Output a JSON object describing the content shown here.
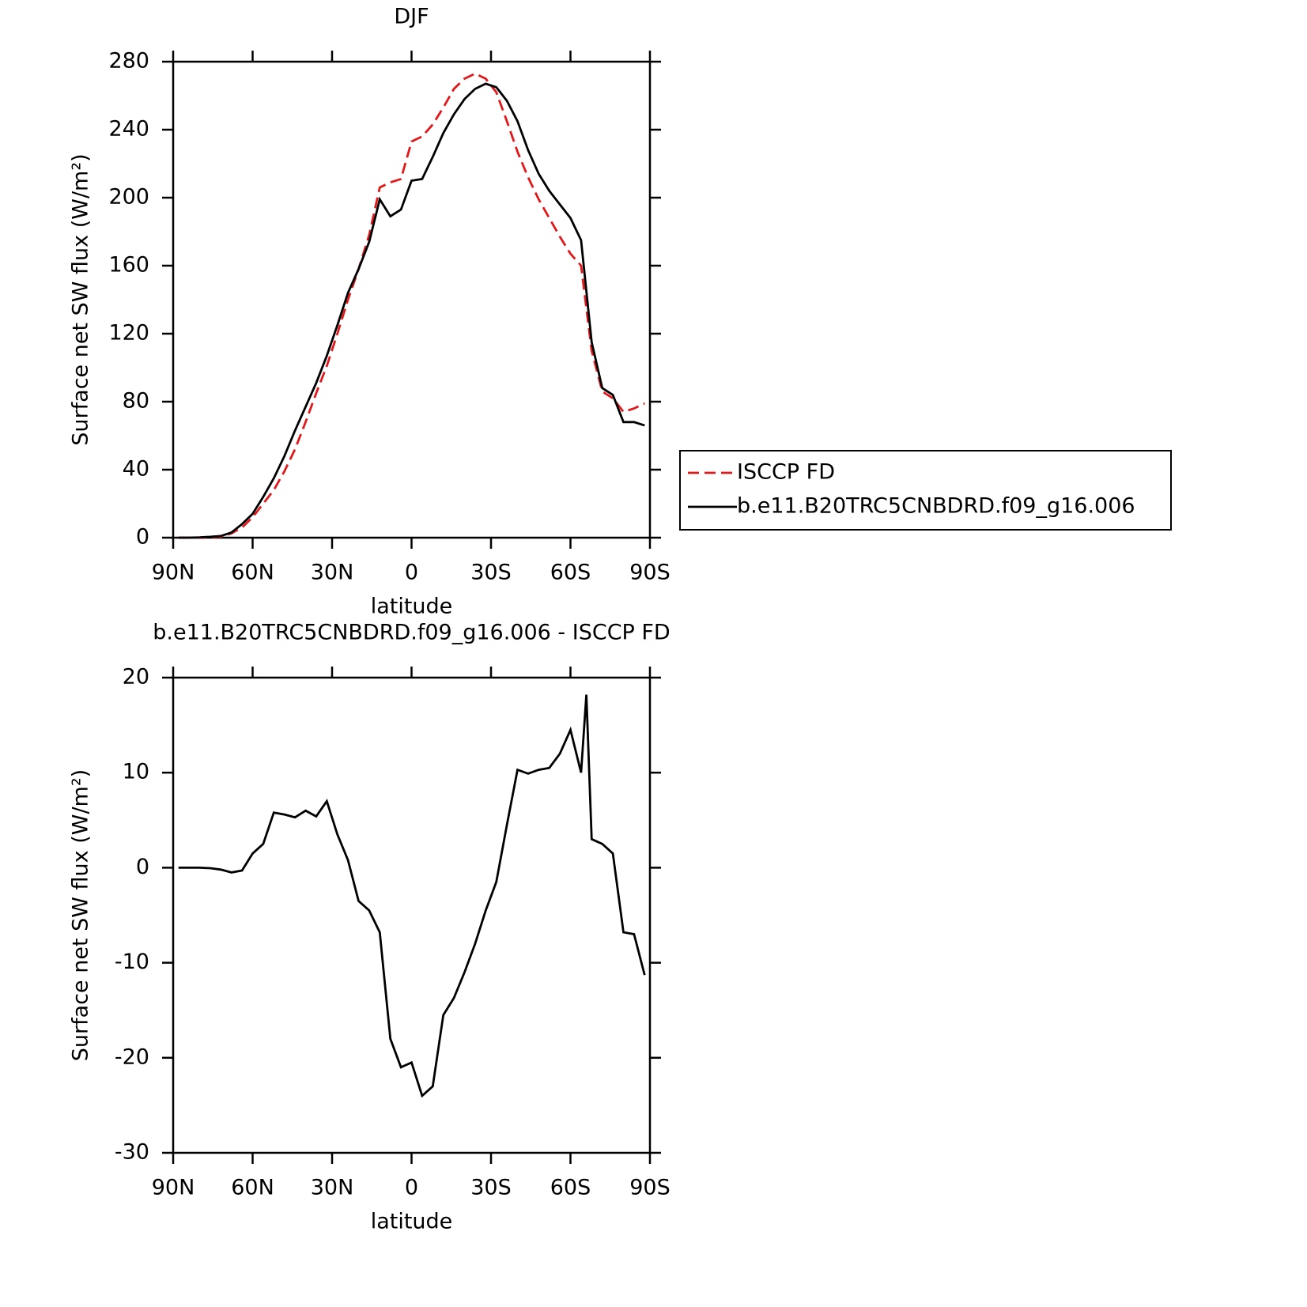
{
  "chart_data": [
    {
      "type": "line",
      "title": "DJF",
      "xlabel": "latitude",
      "ylabel": "Surface net SW flux (W/m²)",
      "x": [
        88,
        84,
        80,
        76,
        72,
        68,
        64,
        60,
        56,
        52,
        48,
        44,
        40,
        36,
        32,
        28,
        24,
        20,
        16,
        12,
        8,
        4,
        0,
        -4,
        -8,
        -12,
        -16,
        -20,
        -24,
        -28,
        -32,
        -36,
        -40,
        -44,
        -48,
        -52,
        -56,
        -60,
        -64,
        -68,
        -72,
        -76,
        -80,
        -84,
        -88
      ],
      "series": [
        {
          "name": "ISCCP FD",
          "color": "#e0191c",
          "dash": true,
          "values": [
            0,
            0,
            0,
            0.3,
            0.5,
            2.5,
            6,
            12,
            20,
            28,
            39,
            52,
            68,
            85,
            101,
            120,
            140,
            158,
            178,
            206,
            209,
            211,
            233,
            236,
            243,
            253,
            264,
            270,
            273,
            270,
            262,
            245,
            227,
            212,
            199,
            188,
            177,
            167,
            160,
            110,
            86,
            82,
            74,
            76,
            79
          ]
        },
        {
          "name": "b.e11.B20TRC5CNBDRD.f09_g16.006",
          "color": "#000000",
          "dash": false,
          "values": [
            0,
            0,
            0.2,
            0.5,
            1,
            3,
            8,
            14,
            24,
            35,
            48,
            63,
            77,
            91,
            107,
            125,
            144,
            158,
            174,
            199,
            189,
            193,
            210,
            211,
            224,
            238,
            249,
            258,
            264,
            267,
            265,
            257,
            245,
            228,
            214,
            204,
            196,
            188,
            175,
            115,
            88,
            84,
            68,
            68,
            66
          ]
        }
      ],
      "xlim": [
        90,
        -90
      ],
      "xticks": [
        {
          "value": 90,
          "label": "90N"
        },
        {
          "value": 60,
          "label": "60N"
        },
        {
          "value": 30,
          "label": "30N"
        },
        0,
        {
          "value": -30,
          "label": "30S"
        },
        {
          "value": -60,
          "label": "60S"
        },
        {
          "value": -90,
          "label": "90S"
        }
      ],
      "ylim": [
        0,
        280
      ],
      "yticks": [
        0,
        40,
        80,
        120,
        160,
        200,
        240,
        280
      ],
      "legend": "right"
    },
    {
      "type": "line",
      "title": "b.e11.B20TRC5CNBDRD.f09_g16.006 - ISCCP FD",
      "xlabel": "latitude",
      "ylabel": "Surface net SW flux (W/m²)",
      "x": [
        88,
        84,
        80,
        76,
        72,
        68,
        64,
        60,
        56,
        52,
        48,
        44,
        40,
        36,
        32,
        28,
        24,
        20,
        16,
        12,
        8,
        4,
        0,
        -4,
        -8,
        -12,
        -16,
        -20,
        -24,
        -28,
        -32,
        -36,
        -40,
        -44,
        -48,
        -52,
        -56,
        -60,
        -64,
        -66,
        -68,
        -72,
        -76,
        -80,
        -84,
        -88
      ],
      "series": [
        {
          "color": "#000000",
          "dash": false,
          "values": [
            0,
            0,
            0,
            -0.05,
            -0.2,
            -0.5,
            -0.3,
            1.5,
            2.5,
            5.8,
            5.6,
            5.3,
            6.0,
            5.4,
            7.0,
            3.5,
            0.8,
            -3.5,
            -4.5,
            -6.8,
            -18,
            -21,
            -20.5,
            -24,
            -23,
            -15.5,
            -13.7,
            -11,
            -8,
            -4.5,
            -1.5,
            4.5,
            10.3,
            9.9,
            10.3,
            10.5,
            12,
            14.5,
            10,
            18.2,
            3.0,
            2.5,
            1.5,
            -6.8,
            -7.0,
            -11.3
          ]
        }
      ],
      "xlim": [
        90,
        -90
      ],
      "xticks": [
        {
          "value": 90,
          "label": "90N"
        },
        {
          "value": 60,
          "label": "60N"
        },
        {
          "value": 30,
          "label": "30N"
        },
        0,
        {
          "value": -30,
          "label": "30S"
        },
        {
          "value": -60,
          "label": "60S"
        },
        {
          "value": -90,
          "label": "90S"
        }
      ],
      "ylim": [
        -30,
        20
      ],
      "yticks": [
        -30,
        -20,
        -10,
        0,
        10,
        20
      ]
    }
  ]
}
